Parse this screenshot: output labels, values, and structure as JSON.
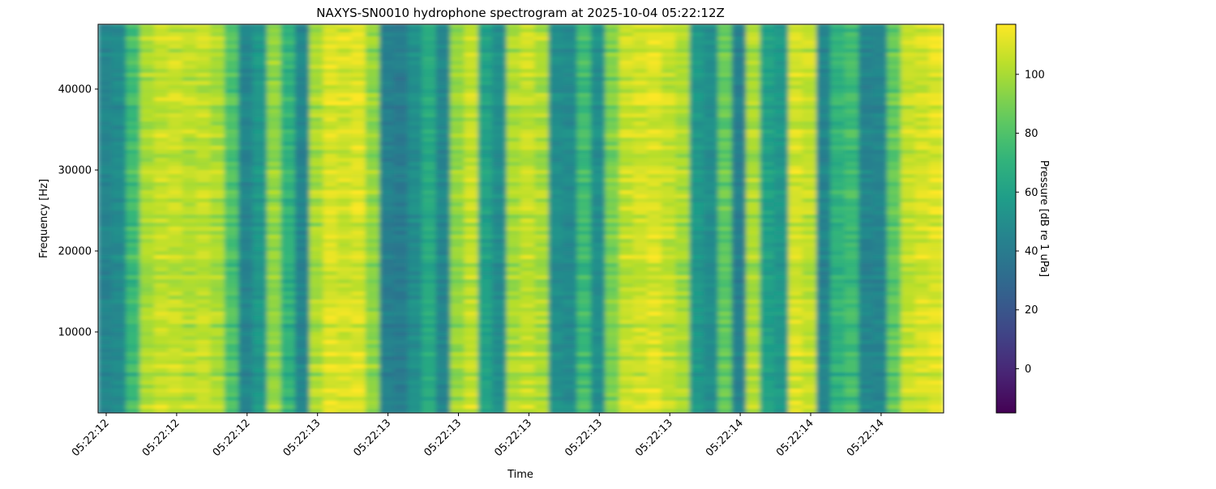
{
  "chart_data": {
    "type": "heatmap",
    "title": "NAXYS-SN0010 hydrophone spectrogram at 2025-10-04 05:22:12Z",
    "xlabel": "Time",
    "ylabel": "Frequency [Hz]",
    "x_tick_labels": [
      "05:22:12",
      "05:22:12",
      "05:22:12",
      "05:22:13",
      "05:22:13",
      "05:22:13",
      "05:22:13",
      "05:22:13",
      "05:22:13",
      "05:22:14",
      "05:22:14",
      "05:22:14"
    ],
    "y_ticks": [
      10000,
      20000,
      30000,
      40000
    ],
    "ylim": [
      0,
      48000
    ],
    "colorbar": {
      "label": "Pressure [dB re 1 uPa]",
      "ticks": [
        0,
        20,
        40,
        60,
        80,
        100
      ],
      "range": [
        -15,
        117
      ],
      "colormap": "viridis"
    },
    "column_mean_levels_db": [
      45,
      48,
      75,
      100,
      105,
      105,
      103,
      105,
      100,
      80,
      45,
      55,
      95,
      70,
      45,
      100,
      110,
      108,
      110,
      95,
      42,
      40,
      50,
      65,
      45,
      95,
      105,
      60,
      50,
      100,
      105,
      100,
      50,
      48,
      75,
      50,
      90,
      105,
      108,
      110,
      105,
      100,
      55,
      50,
      85,
      42,
      100,
      60,
      55,
      108,
      105,
      45,
      70,
      75,
      45,
      45,
      85,
      105,
      108,
      110
    ],
    "grid": false
  }
}
